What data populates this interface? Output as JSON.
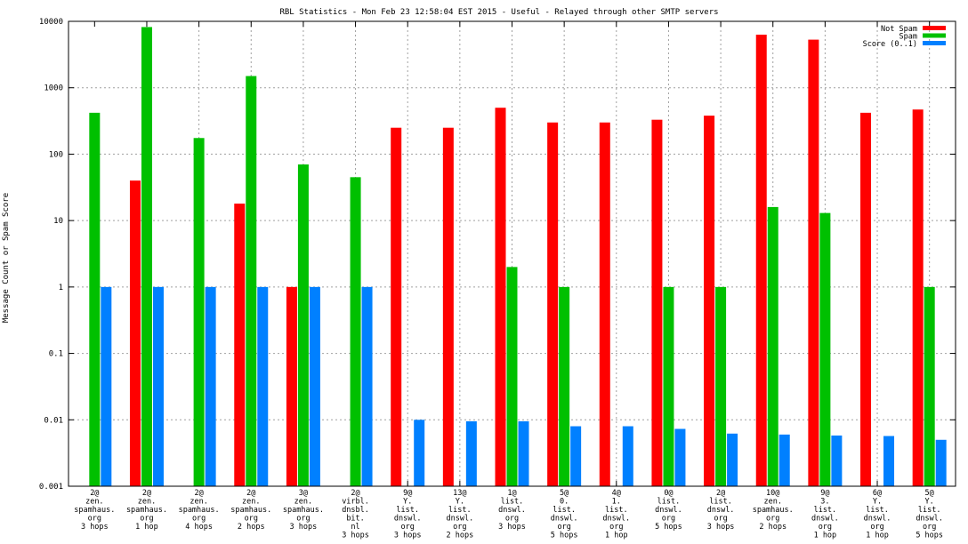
{
  "chart_data": {
    "type": "bar",
    "title": "RBL Statistics - Mon Feb 23 12:58:04 EST 2015 - Useful - Relayed through other SMTP servers",
    "xlabel": "",
    "ylabel": "Message Count or Spam Score",
    "yscale": "log",
    "ylim": [
      0.001,
      10000
    ],
    "yticks": [
      "0.001",
      "0.01",
      "0.1",
      "1",
      "10",
      "100",
      "1000",
      "10000"
    ],
    "ytick_values": [
      0.001,
      0.01,
      0.1,
      1,
      10,
      100,
      1000,
      10000
    ],
    "grid": true,
    "legend_position": "top-right",
    "categories": [
      [
        "2@",
        "zen.",
        "spamhaus.",
        "org",
        "3 hops"
      ],
      [
        "2@",
        "zen.",
        "spamhaus.",
        "org",
        "1 hop"
      ],
      [
        "2@",
        "zen.",
        "spamhaus.",
        "org",
        "4 hops"
      ],
      [
        "2@",
        "zen.",
        "spamhaus.",
        "org",
        "2 hops"
      ],
      [
        "3@",
        "zen.",
        "spamhaus.",
        "org",
        "3 hops"
      ],
      [
        "2@",
        "virbl.",
        "dnsbl.",
        "bit.",
        "nl",
        "3 hops"
      ],
      [
        "9@",
        "Y.",
        "list.",
        "dnswl.",
        "org",
        "3 hops"
      ],
      [
        "13@",
        "Y.",
        "list.",
        "dnswl.",
        "org",
        "2 hops"
      ],
      [
        "1@",
        "list.",
        "dnswl.",
        "org",
        "3 hops"
      ],
      [
        "5@",
        "0.",
        "list.",
        "dnswl.",
        "org",
        "5 hops"
      ],
      [
        "4@",
        "1.",
        "list.",
        "dnswl.",
        "org",
        "1 hop"
      ],
      [
        "0@",
        "list.",
        "dnswl.",
        "org",
        "5 hops"
      ],
      [
        "2@",
        "list.",
        "dnswl.",
        "org",
        "3 hops"
      ],
      [
        "10@",
        "zen.",
        "spamhaus.",
        "org",
        "2 hops"
      ],
      [
        "9@",
        "3.",
        "list.",
        "dnswl.",
        "org",
        "1 hop"
      ],
      [
        "6@",
        "Y.",
        "list.",
        "dnswl.",
        "org",
        "1 hop"
      ],
      [
        "5@",
        "Y.",
        "list.",
        "dnswl.",
        "org",
        "5 hops"
      ]
    ],
    "series": [
      {
        "name": "Not Spam",
        "color": "#ff0000",
        "values": [
          null,
          40,
          null,
          18,
          1,
          null,
          250,
          250,
          500,
          300,
          300,
          330,
          380,
          6300,
          5300,
          420,
          470
        ]
      },
      {
        "name": "Spam",
        "color": "#00c000",
        "values": [
          420,
          8200,
          175,
          1500,
          70,
          45,
          null,
          null,
          2,
          1,
          null,
          1,
          1,
          16,
          13,
          null,
          1
        ]
      },
      {
        "name": "Score (0..1)",
        "color": "#0080ff",
        "values": [
          1,
          1,
          1,
          1,
          1,
          1,
          0.01,
          0.0095,
          0.0095,
          0.008,
          0.008,
          0.0073,
          0.0062,
          0.006,
          0.0058,
          0.0057,
          0.005
        ]
      }
    ]
  }
}
